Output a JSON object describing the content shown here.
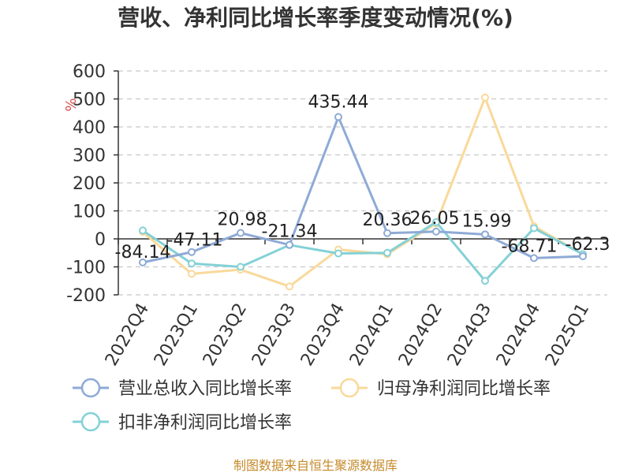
{
  "chart_data": {
    "type": "line",
    "title": "营收、净利同比增长率季度变动情况(%)",
    "unit": "%",
    "categories": [
      "2022Q4",
      "2023Q1",
      "2023Q2",
      "2023Q3",
      "2023Q4",
      "2024Q1",
      "2024Q2",
      "2024Q3",
      "2024Q4",
      "2025Q1"
    ],
    "ylim": [
      -200,
      600
    ],
    "yticks": [
      600,
      500,
      400,
      300,
      200,
      100,
      0,
      -100,
      -200
    ],
    "grid": true,
    "legend_position": "bottom",
    "series": [
      {
        "name": "营业总收入同比增长率",
        "color": "#8eaad6",
        "values": [
          -84.14,
          -47.11,
          20.98,
          -21.34,
          435.44,
          20.36,
          26.05,
          15.99,
          -68.71,
          -62.3
        ],
        "labels": [
          "-84.14",
          "-47.11",
          "20.98",
          "-21.34",
          "435.44",
          "20.36",
          "26.05",
          "15.99",
          "-68.71",
          "-62.3"
        ]
      },
      {
        "name": "归母净利润同比增长率",
        "color": "#f9d99a",
        "values": [
          25,
          -125,
          -110,
          -170,
          -38,
          -55,
          55,
          505,
          45,
          -55
        ]
      },
      {
        "name": "扣非净利润同比增长率",
        "color": "#83d1d6",
        "values": [
          30,
          -88,
          -100,
          -22,
          -52,
          -50,
          60,
          -150,
          38,
          -55
        ]
      }
    ],
    "source": "制图数据来自恒生聚源数据库"
  }
}
